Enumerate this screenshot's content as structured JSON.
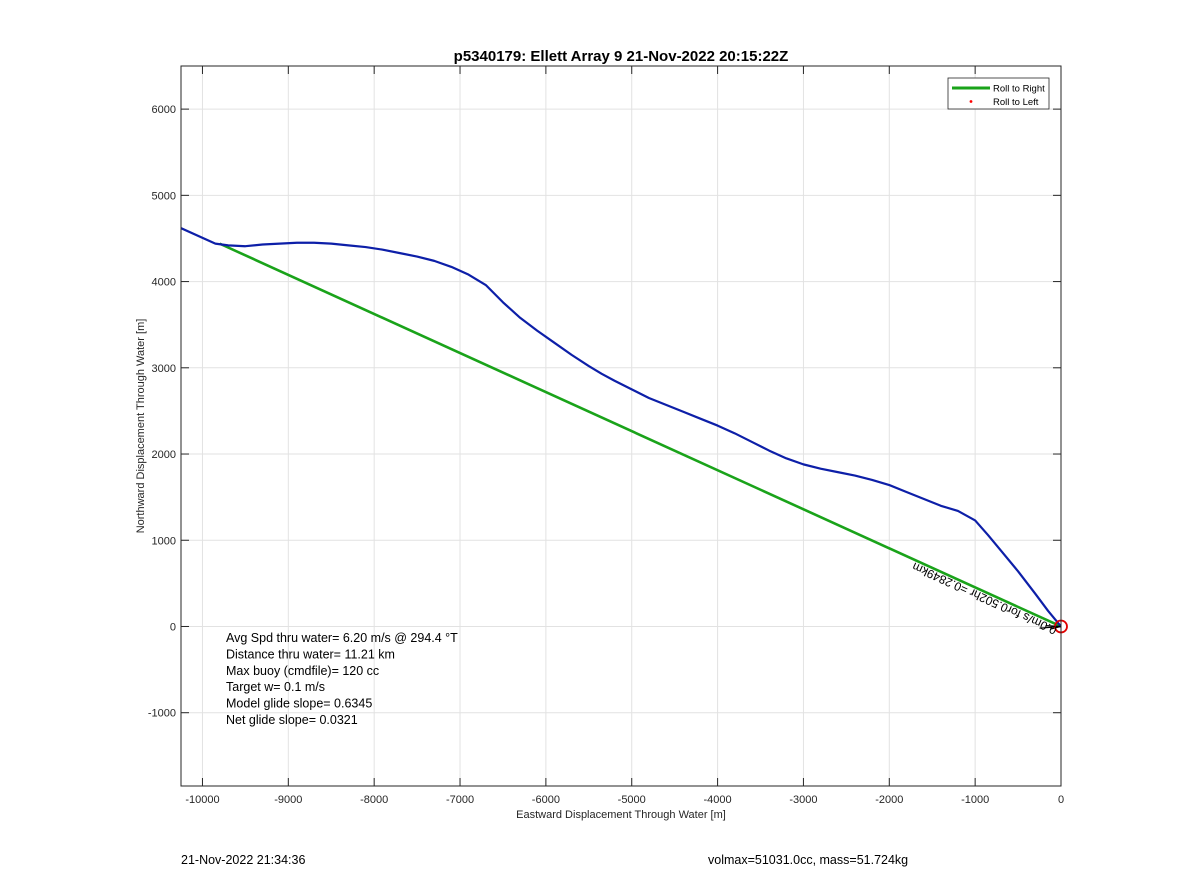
{
  "chart_data": {
    "type": "line",
    "title": "p5340179: Ellett Array 9 21-Nov-2022 20:15:22Z",
    "xlabel": "Eastward Displacement Through Water [m]",
    "ylabel": "Northward Displacement Through Water [m]",
    "xlim": [
      -10250,
      0
    ],
    "ylim": [
      -1850,
      6500
    ],
    "xticks": [
      -10000,
      -9000,
      -8000,
      -7000,
      -6000,
      -5000,
      -4000,
      -3000,
      -2000,
      -1000,
      0
    ],
    "yticks": [
      -1000,
      0,
      1000,
      2000,
      3000,
      4000,
      5000,
      6000
    ],
    "grid": true,
    "legend_position": "top-right",
    "series": [
      {
        "name": "Roll to Right",
        "color": "#1aa31a",
        "x": [
          0,
          -9800
        ],
        "y": [
          0,
          4440
        ]
      },
      {
        "name": "Roll to Left",
        "color": "#ff0000",
        "x": [],
        "y": []
      },
      {
        "color": "#0d1fa8",
        "x": [
          0,
          -50,
          -150,
          -300,
          -500,
          -700,
          -850,
          -1000,
          -1200,
          -1400,
          -1600,
          -1800,
          -2000,
          -2200,
          -2400,
          -2600,
          -2800,
          -3000,
          -3200,
          -3400,
          -3600,
          -3800,
          -4000,
          -4200,
          -4400,
          -4600,
          -4800,
          -5000,
          -5200,
          -5350,
          -5500,
          -5700,
          -5900,
          -6100,
          -6300,
          -6500,
          -6700,
          -6900,
          -7100,
          -7300,
          -7500,
          -7700,
          -7900,
          -8100,
          -8300,
          -8500,
          -8700,
          -8900,
          -9100,
          -9300,
          -9500,
          -9700,
          -9850,
          -10250
        ],
        "y": [
          0,
          60,
          180,
          380,
          640,
          880,
          1060,
          1230,
          1340,
          1400,
          1480,
          1560,
          1640,
          1700,
          1750,
          1790,
          1830,
          1880,
          1950,
          2040,
          2140,
          2240,
          2330,
          2410,
          2490,
          2570,
          2650,
          2750,
          2850,
          2930,
          3020,
          3150,
          3290,
          3430,
          3580,
          3760,
          3960,
          4080,
          4170,
          4240,
          4290,
          4330,
          4370,
          4400,
          4420,
          4440,
          4450,
          4450,
          4440,
          4430,
          4410,
          4420,
          4440,
          4620
        ]
      }
    ],
    "segment_label": "0.0m/s for0.502hr =0.2849km",
    "annotations": [
      "Avg Spd thru water=  6.20 m/s @ 294.4 °T",
      "Distance thru water= 11.21 km",
      "Max buoy (cmdfile)= 120 cc",
      "Target w= 0.1 m/s",
      "Model glide slope= 0.6345",
      "Net glide slope= 0.0321"
    ],
    "footer_left": "21-Nov-2022 21:34:36",
    "footer_right": "volmax=51031.0cc, mass=51.724kg"
  }
}
